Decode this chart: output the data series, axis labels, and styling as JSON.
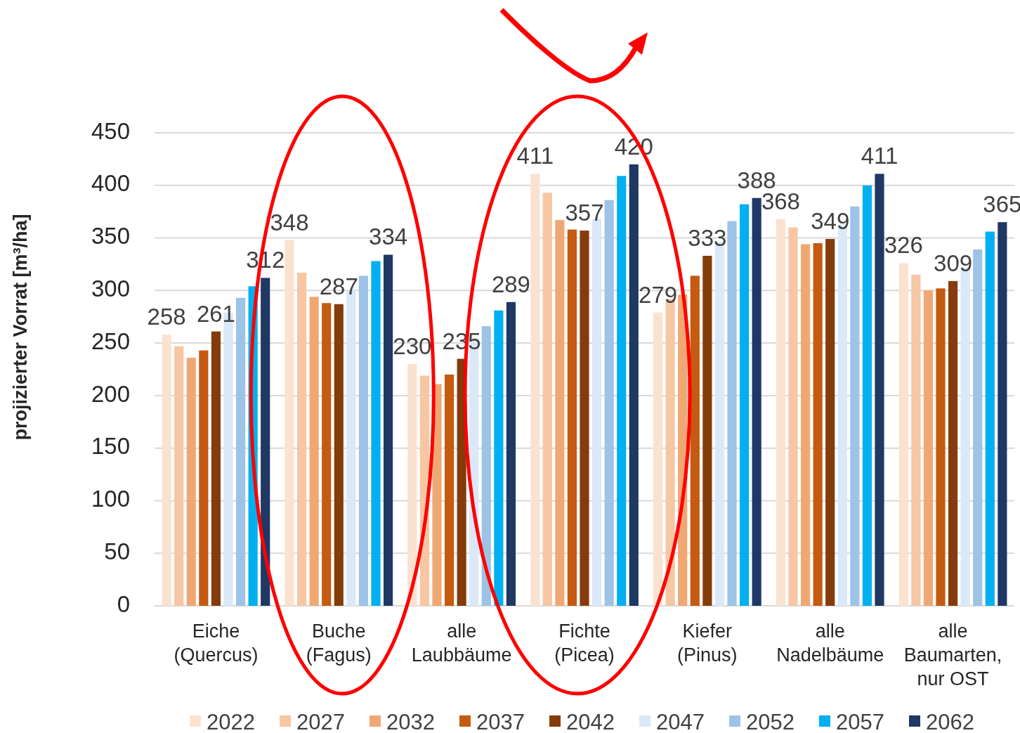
{
  "chart_data": {
    "type": "bar",
    "ylabel": "projizierter Vorrat  [m³/ha]",
    "categories": [
      "Eiche\n(Quercus)",
      "Buche\n(Fagus)",
      "alle\nLaubbäume",
      "Fichte\n(Picea)",
      "Kiefer\n(Pinus)",
      "alle\nNadelbäume",
      "alle\nBaumarten,\nnur OST"
    ],
    "series": [
      {
        "name": "2022",
        "color": "#fbe2d0",
        "values": [
          258,
          348,
          230,
          411,
          279,
          368,
          326
        ],
        "value_labels": [
          "258",
          "348",
          "230",
          "411",
          "279",
          "368",
          "326"
        ]
      },
      {
        "name": "2027",
        "color": "#f7c6a3",
        "values": [
          247,
          317,
          219,
          393,
          292,
          360,
          315
        ]
      },
      {
        "name": "2032",
        "color": "#f0a873",
        "values": [
          236,
          294,
          211,
          367,
          296,
          344,
          300
        ]
      },
      {
        "name": "2037",
        "color": "#c55a11",
        "values": [
          243,
          288,
          220,
          358,
          314,
          345,
          302
        ]
      },
      {
        "name": "2042",
        "color": "#843c0c",
        "values": [
          261,
          287,
          235,
          357,
          333,
          349,
          309
        ],
        "value_labels": [
          "261",
          "287",
          "235",
          "357",
          "333",
          "349",
          "309"
        ]
      },
      {
        "name": "2047",
        "color": "#dae8f7",
        "values": [
          279,
          300,
          255,
          368,
          346,
          362,
          322
        ]
      },
      {
        "name": "2052",
        "color": "#9dc3e6",
        "values": [
          293,
          314,
          266,
          386,
          366,
          380,
          339
        ]
      },
      {
        "name": "2057",
        "color": "#00b0f0",
        "values": [
          304,
          328,
          281,
          409,
          382,
          400,
          356
        ]
      },
      {
        "name": "2062",
        "color": "#1f3864",
        "values": [
          312,
          334,
          289,
          420,
          388,
          411,
          365
        ],
        "value_labels": [
          "312",
          "334",
          "289",
          "420",
          "388",
          "411",
          "365"
        ]
      }
    ],
    "ylim": [
      0,
      450
    ],
    "yticks": [
      0,
      50,
      100,
      150,
      200,
      250,
      300,
      350,
      400,
      450
    ],
    "grid": "y",
    "legend": "bottom"
  }
}
